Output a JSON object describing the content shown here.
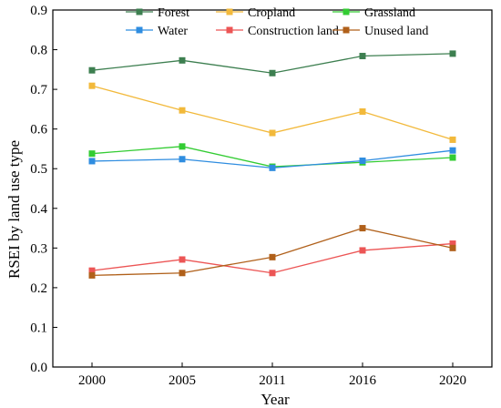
{
  "chart_data": {
    "type": "line",
    "categories": [
      "2000",
      "2005",
      "2011",
      "2016",
      "2020"
    ],
    "xlabel": "Year",
    "ylabel": "RSEI by land use type",
    "ylim": [
      0,
      0.9
    ],
    "yticks": [
      "0.0",
      "0.1",
      "0.2",
      "0.3",
      "0.4",
      "0.5",
      "0.6",
      "0.7",
      "0.8",
      "0.9"
    ],
    "grid": false,
    "legend_position": "top",
    "series": [
      {
        "name": "Forest",
        "color": "#3d7f50",
        "values": [
          0.748,
          0.773,
          0.741,
          0.784,
          0.79
        ]
      },
      {
        "name": "Cropland",
        "color": "#f2b93b",
        "values": [
          0.709,
          0.647,
          0.59,
          0.644,
          0.573
        ]
      },
      {
        "name": "Grassland",
        "color": "#33cc33",
        "values": [
          0.538,
          0.556,
          0.505,
          0.516,
          0.528
        ]
      },
      {
        "name": "Water",
        "color": "#2f8de0",
        "values": [
          0.519,
          0.524,
          0.502,
          0.52,
          0.546
        ]
      },
      {
        "name": "Construction land",
        "color": "#ec5555",
        "values": [
          0.243,
          0.271,
          0.237,
          0.294,
          0.311
        ]
      },
      {
        "name": "Unused land",
        "color": "#b0601a",
        "values": [
          0.231,
          0.237,
          0.277,
          0.35,
          0.3
        ]
      }
    ]
  }
}
